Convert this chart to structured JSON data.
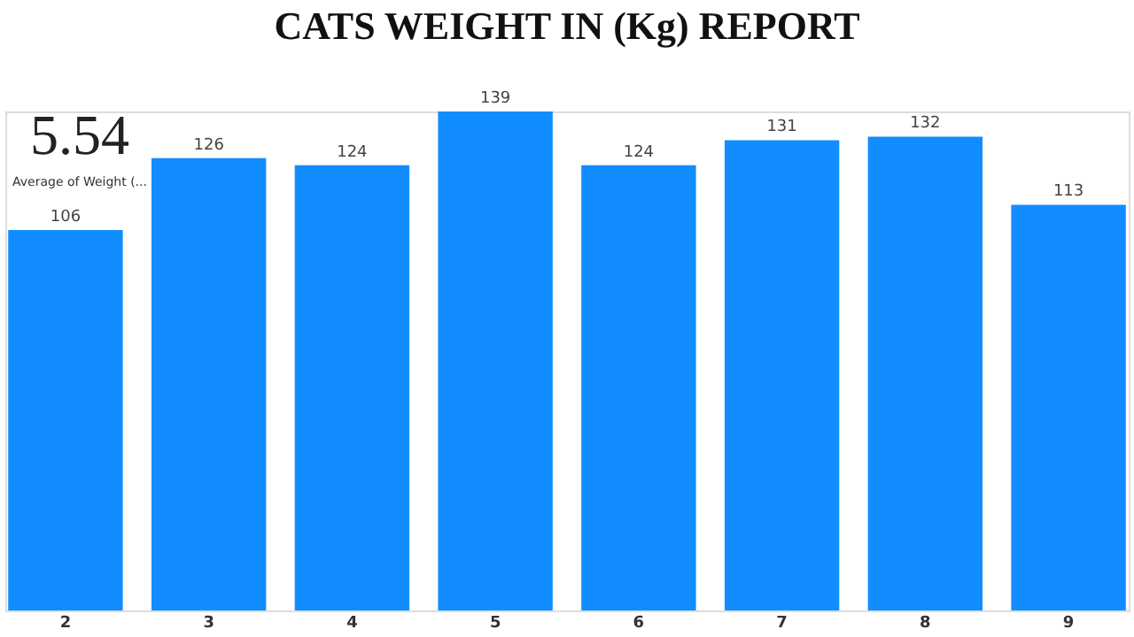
{
  "chart_data": {
    "type": "bar",
    "title": "CATS WEIGHT IN (Kg) REPORT",
    "categories": [
      "2",
      "3",
      "4",
      "5",
      "6",
      "7",
      "8",
      "9"
    ],
    "values": [
      106,
      126,
      124,
      139,
      124,
      131,
      132,
      113
    ],
    "color": "#118dff",
    "data_labels": true,
    "grid": false,
    "annotations": [
      "5.54",
      "Average of Weight (..."
    ]
  }
}
